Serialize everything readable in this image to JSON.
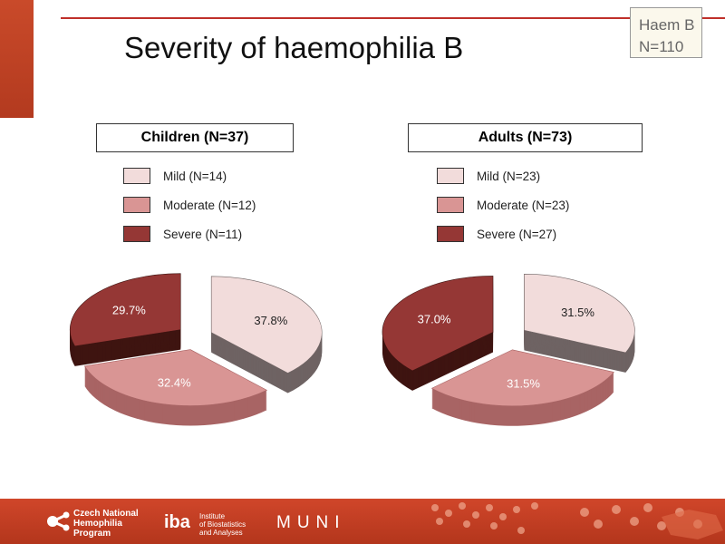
{
  "title": "Severity of haemophilia B",
  "badge": {
    "line1": "Haem B",
    "line2": "N=110"
  },
  "colors": {
    "Mild": "#f2dcdb",
    "Moderate": "#d99594",
    "Severe": "#953735"
  },
  "side_colors": {
    "Mild": "#6e6363",
    "Moderate": "#a86464",
    "Severe": "#3e1411"
  },
  "chart_data": [
    {
      "type": "pie",
      "title": "Children (N=37)",
      "categories": [
        "Mild (N=14)",
        "Moderate (N=12)",
        "Severe (N=11)"
      ],
      "values": [
        37.8,
        32.4,
        29.7
      ],
      "labels": [
        "37.8%",
        "32.4%",
        "29.7%"
      ],
      "legend": "top"
    },
    {
      "type": "pie",
      "title": "Adults (N=73)",
      "categories": [
        "Mild (N=23)",
        "Moderate (N=23)",
        "Severe (N=27)"
      ],
      "values": [
        31.5,
        31.5,
        37.0
      ],
      "labels": [
        "31.5%",
        "31.5%",
        "37.0%"
      ],
      "legend": "top"
    }
  ],
  "footer": {
    "cnhp": [
      "Czech National",
      "Hemophilia",
      "Program"
    ],
    "iba_logo": "iba",
    "iba": [
      "Institute",
      "of Biostatistics",
      "and Analyses"
    ],
    "muni": "MUNI"
  }
}
